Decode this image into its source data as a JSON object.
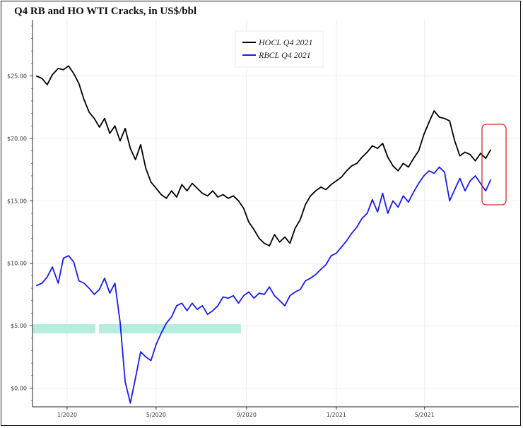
{
  "chart_data": {
    "type": "line",
    "title": "Q4 RB and HO WTI Cracks, in US$/bbl",
    "xlabel": "",
    "ylabel": "",
    "x_ticks": [
      "1/2020",
      "5/2020",
      "9/2020",
      "1/2021",
      "5/2021"
    ],
    "y_ticks": [
      "$0.00",
      "$5.00",
      "$10.00",
      "$15.00",
      "$20.00",
      "$25.00"
    ],
    "ylim": [
      -1.5,
      29.5
    ],
    "grid": true,
    "legend_position": "top-center",
    "annotation": "red rounded box highlighting the latest values",
    "series": [
      {
        "name": "HOCL Q4 2021",
        "color": "#000000",
        "points": [
          [
            "2019-11-20",
            25.0
          ],
          [
            "2019-11-28",
            24.8
          ],
          [
            "2019-12-05",
            24.3
          ],
          [
            "2019-12-12",
            25.1
          ],
          [
            "2019-12-20",
            25.6
          ],
          [
            "2019-12-27",
            25.5
          ],
          [
            "2020-01-03",
            25.8
          ],
          [
            "2020-01-10",
            25.2
          ],
          [
            "2020-01-17",
            24.4
          ],
          [
            "2020-01-24",
            23.1
          ],
          [
            "2020-01-31",
            22.1
          ],
          [
            "2020-02-07",
            21.6
          ],
          [
            "2020-02-14",
            20.9
          ],
          [
            "2020-02-21",
            21.6
          ],
          [
            "2020-02-28",
            20.4
          ],
          [
            "2020-03-06",
            21.0
          ],
          [
            "2020-03-13",
            19.8
          ],
          [
            "2020-03-20",
            20.8
          ],
          [
            "2020-03-27",
            19.2
          ],
          [
            "2020-04-03",
            18.3
          ],
          [
            "2020-04-10",
            19.5
          ],
          [
            "2020-04-17",
            17.6
          ],
          [
            "2020-04-24",
            16.5
          ],
          [
            "2020-05-01",
            16.0
          ],
          [
            "2020-05-08",
            15.5
          ],
          [
            "2020-05-15",
            15.2
          ],
          [
            "2020-05-22",
            15.8
          ],
          [
            "2020-05-29",
            15.3
          ],
          [
            "2020-06-05",
            16.3
          ],
          [
            "2020-06-12",
            15.8
          ],
          [
            "2020-06-19",
            16.4
          ],
          [
            "2020-06-26",
            16.0
          ],
          [
            "2020-07-03",
            15.6
          ],
          [
            "2020-07-10",
            15.4
          ],
          [
            "2020-07-17",
            15.8
          ],
          [
            "2020-07-24",
            15.3
          ],
          [
            "2020-07-31",
            15.5
          ],
          [
            "2020-08-07",
            15.2
          ],
          [
            "2020-08-14",
            15.4
          ],
          [
            "2020-08-21",
            15.0
          ],
          [
            "2020-08-28",
            14.4
          ],
          [
            "2020-09-04",
            13.3
          ],
          [
            "2020-09-11",
            12.7
          ],
          [
            "2020-09-18",
            12.0
          ],
          [
            "2020-09-25",
            11.6
          ],
          [
            "2020-10-02",
            11.4
          ],
          [
            "2020-10-09",
            12.3
          ],
          [
            "2020-10-16",
            11.7
          ],
          [
            "2020-10-23",
            12.1
          ],
          [
            "2020-10-30",
            11.6
          ],
          [
            "2020-11-06",
            12.8
          ],
          [
            "2020-11-13",
            13.5
          ],
          [
            "2020-11-20",
            14.7
          ],
          [
            "2020-11-27",
            15.4
          ],
          [
            "2020-12-04",
            15.8
          ],
          [
            "2020-12-11",
            16.1
          ],
          [
            "2020-12-18",
            15.9
          ],
          [
            "2020-12-25",
            16.3
          ],
          [
            "2021-01-01",
            16.6
          ],
          [
            "2021-01-08",
            16.9
          ],
          [
            "2021-01-15",
            17.4
          ],
          [
            "2021-01-22",
            17.8
          ],
          [
            "2021-01-29",
            18.0
          ],
          [
            "2021-02-05",
            18.5
          ],
          [
            "2021-02-12",
            18.9
          ],
          [
            "2021-02-19",
            19.4
          ],
          [
            "2021-02-26",
            19.2
          ],
          [
            "2021-03-05",
            19.6
          ],
          [
            "2021-03-12",
            18.5
          ],
          [
            "2021-03-19",
            17.8
          ],
          [
            "2021-03-26",
            17.4
          ],
          [
            "2021-04-02",
            18.0
          ],
          [
            "2021-04-09",
            17.7
          ],
          [
            "2021-04-16",
            18.4
          ],
          [
            "2021-04-23",
            19.0
          ],
          [
            "2021-04-30",
            20.3
          ],
          [
            "2021-05-07",
            21.3
          ],
          [
            "2021-05-14",
            22.2
          ],
          [
            "2021-05-21",
            21.7
          ],
          [
            "2021-05-28",
            21.6
          ],
          [
            "2021-06-04",
            21.4
          ],
          [
            "2021-06-11",
            19.8
          ],
          [
            "2021-06-18",
            18.6
          ],
          [
            "2021-06-25",
            18.9
          ],
          [
            "2021-07-02",
            18.7
          ],
          [
            "2021-07-09",
            18.2
          ],
          [
            "2021-07-16",
            18.8
          ],
          [
            "2021-07-23",
            18.4
          ],
          [
            "2021-07-30",
            19.1
          ]
        ]
      },
      {
        "name": "RBCL Q4 2021",
        "color": "#1a1aee",
        "points": [
          [
            "2019-11-20",
            8.2
          ],
          [
            "2019-11-28",
            8.4
          ],
          [
            "2019-12-05",
            8.9
          ],
          [
            "2019-12-12",
            9.7
          ],
          [
            "2019-12-20",
            8.4
          ],
          [
            "2019-12-27",
            10.4
          ],
          [
            "2020-01-03",
            10.6
          ],
          [
            "2020-01-10",
            10.1
          ],
          [
            "2020-01-17",
            8.6
          ],
          [
            "2020-01-24",
            8.4
          ],
          [
            "2020-01-31",
            8.0
          ],
          [
            "2020-02-07",
            7.5
          ],
          [
            "2020-02-14",
            7.9
          ],
          [
            "2020-02-21",
            8.8
          ],
          [
            "2020-02-28",
            7.6
          ],
          [
            "2020-03-06",
            8.4
          ],
          [
            "2020-03-13",
            5.3
          ],
          [
            "2020-03-20",
            0.5
          ],
          [
            "2020-03-27",
            -1.2
          ],
          [
            "2020-04-03",
            0.8
          ],
          [
            "2020-04-10",
            2.9
          ],
          [
            "2020-04-17",
            2.5
          ],
          [
            "2020-04-24",
            2.2
          ],
          [
            "2020-05-01",
            3.5
          ],
          [
            "2020-05-08",
            4.4
          ],
          [
            "2020-05-15",
            5.2
          ],
          [
            "2020-05-22",
            5.7
          ],
          [
            "2020-05-29",
            6.6
          ],
          [
            "2020-06-05",
            6.8
          ],
          [
            "2020-06-12",
            6.2
          ],
          [
            "2020-06-19",
            6.8
          ],
          [
            "2020-06-26",
            6.3
          ],
          [
            "2020-07-03",
            6.6
          ],
          [
            "2020-07-10",
            5.9
          ],
          [
            "2020-07-17",
            6.2
          ],
          [
            "2020-07-24",
            6.6
          ],
          [
            "2020-07-31",
            7.3
          ],
          [
            "2020-08-07",
            7.2
          ],
          [
            "2020-08-14",
            7.4
          ],
          [
            "2020-08-21",
            6.8
          ],
          [
            "2020-08-28",
            7.4
          ],
          [
            "2020-09-04",
            7.7
          ],
          [
            "2020-09-11",
            7.2
          ],
          [
            "2020-09-18",
            7.6
          ],
          [
            "2020-09-25",
            7.5
          ],
          [
            "2020-10-02",
            8.1
          ],
          [
            "2020-10-09",
            7.4
          ],
          [
            "2020-10-16",
            7.0
          ],
          [
            "2020-10-23",
            6.6
          ],
          [
            "2020-10-30",
            7.4
          ],
          [
            "2020-11-06",
            7.7
          ],
          [
            "2020-11-13",
            7.9
          ],
          [
            "2020-11-20",
            8.6
          ],
          [
            "2020-11-27",
            8.8
          ],
          [
            "2020-12-04",
            9.1
          ],
          [
            "2020-12-11",
            9.5
          ],
          [
            "2020-12-18",
            9.9
          ],
          [
            "2020-12-25",
            10.6
          ],
          [
            "2021-01-01",
            10.8
          ],
          [
            "2021-01-08",
            11.3
          ],
          [
            "2021-01-15",
            11.8
          ],
          [
            "2021-01-22",
            12.4
          ],
          [
            "2021-01-29",
            12.9
          ],
          [
            "2021-02-05",
            13.6
          ],
          [
            "2021-02-12",
            14.0
          ],
          [
            "2021-02-19",
            15.1
          ],
          [
            "2021-02-26",
            14.1
          ],
          [
            "2021-03-05",
            15.6
          ],
          [
            "2021-03-12",
            14.0
          ],
          [
            "2021-03-19",
            15.0
          ],
          [
            "2021-03-26",
            14.5
          ],
          [
            "2021-04-02",
            15.4
          ],
          [
            "2021-04-09",
            14.9
          ],
          [
            "2021-04-16",
            15.7
          ],
          [
            "2021-04-23",
            16.4
          ],
          [
            "2021-04-30",
            17.0
          ],
          [
            "2021-05-07",
            17.4
          ],
          [
            "2021-05-14",
            17.2
          ],
          [
            "2021-05-21",
            17.7
          ],
          [
            "2021-05-28",
            17.3
          ],
          [
            "2021-06-04",
            15.0
          ],
          [
            "2021-06-11",
            15.9
          ],
          [
            "2021-06-18",
            16.8
          ],
          [
            "2021-06-25",
            15.8
          ],
          [
            "2021-07-02",
            16.6
          ],
          [
            "2021-07-09",
            17.0
          ],
          [
            "2021-07-16",
            16.4
          ],
          [
            "2021-07-23",
            15.8
          ],
          [
            "2021-07-30",
            16.7
          ]
        ]
      }
    ]
  }
}
